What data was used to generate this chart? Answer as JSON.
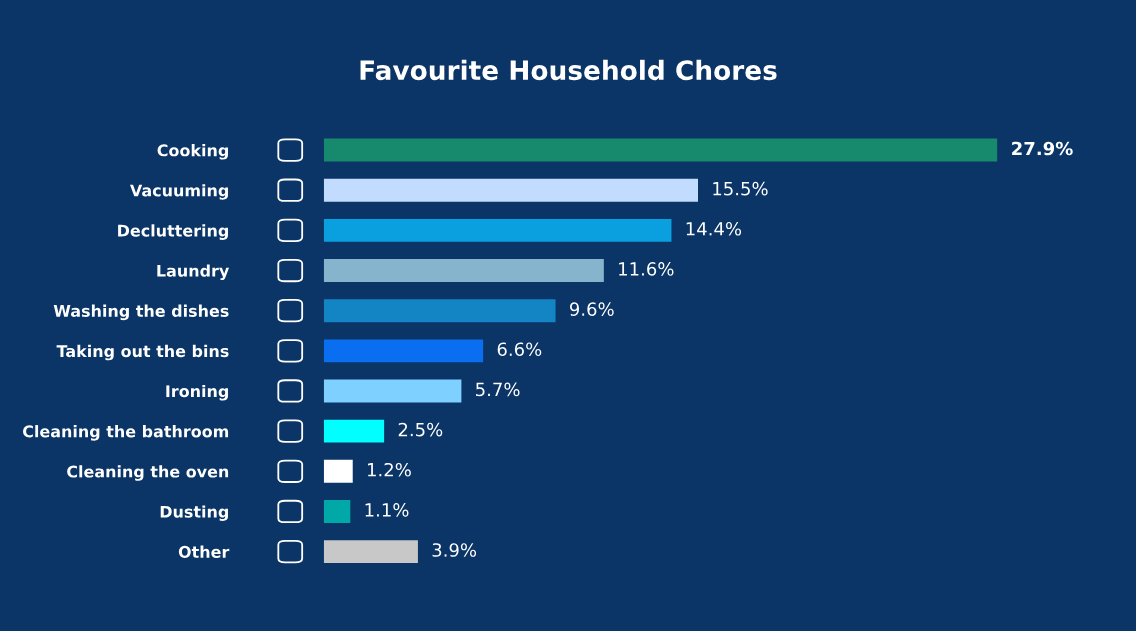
{
  "chart_data": {
    "type": "bar",
    "orientation": "horizontal",
    "title": "Favourite Household Chores",
    "categories": [
      "Cooking",
      "Vacuuming",
      "Decluttering",
      "Laundry",
      "Washing the dishes",
      "Taking out the bins",
      "Ironing",
      "Cleaning the bathroom",
      "Cleaning the oven",
      "Dusting",
      "Other"
    ],
    "values": [
      27.9,
      15.5,
      14.4,
      11.6,
      9.6,
      6.6,
      5.7,
      2.5,
      1.2,
      1.1,
      3.9
    ],
    "value_labels": [
      "27.9%",
      "15.5%",
      "14.4%",
      "11.6%",
      "9.6%",
      "6.6%",
      "5.7%",
      "2.5%",
      "1.2%",
      "1.1%",
      "3.9%"
    ],
    "colors": [
      "#178a6e",
      "#c2dcff",
      "#0aa0e0",
      "#86b4cc",
      "#1384c4",
      "#0a6ef0",
      "#7dd0ff",
      "#00ffff",
      "#ffffff",
      "#00a8a8",
      "#c8c8c8"
    ],
    "xlim": [
      0,
      27.9
    ],
    "tick_labels": "y",
    "grid": false,
    "legend": false
  }
}
